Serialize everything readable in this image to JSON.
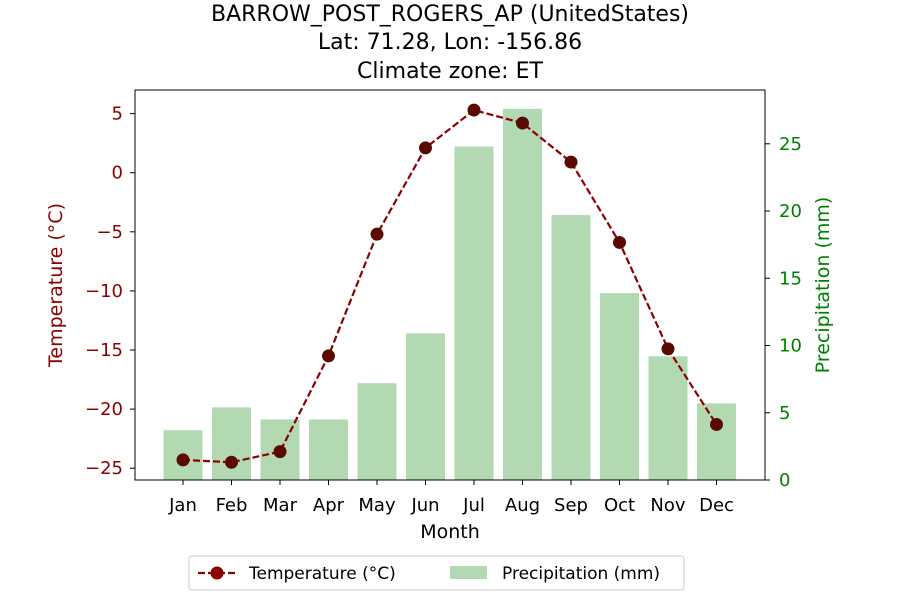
{
  "chart_data": {
    "type": "bar+line",
    "title_lines": [
      "BARROW_POST_ROGERS_AP (UnitedStates)",
      "Lat: 71.28, Lon: -156.86",
      "Climate zone: ET"
    ],
    "xlabel": "Month",
    "categories": [
      "Jan",
      "Feb",
      "Mar",
      "Apr",
      "May",
      "Jun",
      "Jul",
      "Aug",
      "Sep",
      "Oct",
      "Nov",
      "Dec"
    ],
    "series": [
      {
        "name": "Temperature (°C)",
        "axis": "left",
        "type": "line",
        "color": "#8b0000",
        "values": [
          -24.3,
          -24.5,
          -23.6,
          -15.5,
          -5.2,
          2.1,
          5.3,
          4.2,
          0.9,
          -5.9,
          -14.9,
          -21.3
        ]
      },
      {
        "name": "Precipitation (mm)",
        "axis": "right",
        "type": "bar",
        "color": "#b2d9b2",
        "values": [
          3.7,
          5.4,
          4.5,
          4.5,
          7.2,
          10.9,
          24.8,
          27.6,
          19.7,
          13.9,
          9.2,
          5.7
        ]
      }
    ],
    "left_axis": {
      "label": "Temperature (°C)",
      "range": [
        -26,
        7
      ],
      "ticks": [
        5,
        0,
        -5,
        -10,
        -15,
        -20,
        -25
      ],
      "tick_labels": [
        "5",
        "0",
        "−5",
        "−10",
        "−15",
        "−20",
        "−25"
      ],
      "color": "#8b0000"
    },
    "right_axis": {
      "label": "Precipitation (mm)",
      "range": [
        0,
        29
      ],
      "ticks": [
        0,
        5,
        10,
        15,
        20,
        25
      ],
      "tick_labels": [
        "0",
        "5",
        "10",
        "15",
        "20",
        "25"
      ],
      "color": "#008000"
    },
    "legend": {
      "placement": "bottom-center",
      "items": [
        "Temperature (°C)",
        "Precipitation (mm)"
      ]
    }
  }
}
